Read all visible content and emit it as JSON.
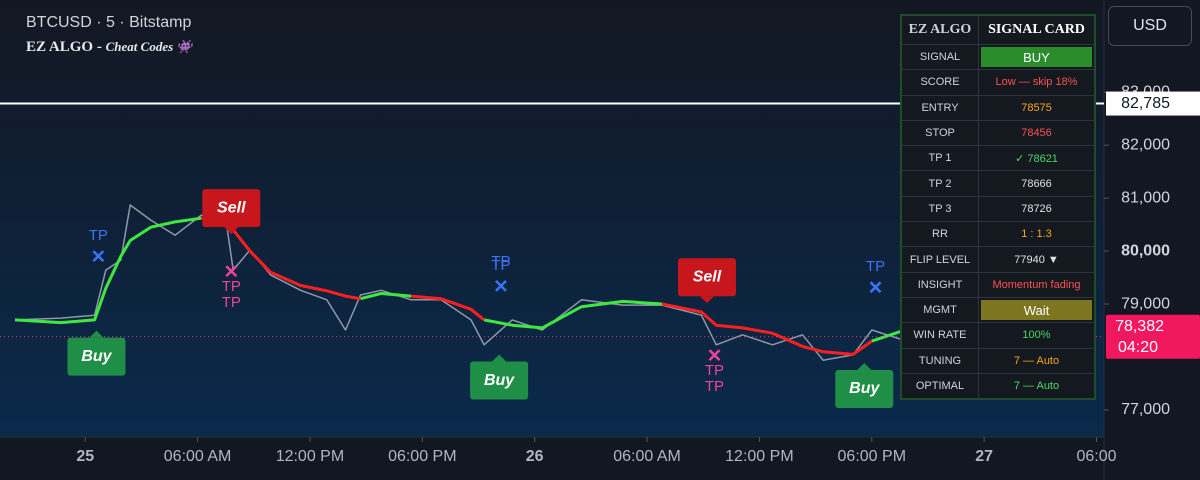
{
  "header": {
    "symbol": "BTCUSD · 5 · Bitstamp",
    "indicator": "EZ ALGO - ",
    "indicator_sub": "Cheat Codes 👾"
  },
  "currency": "USD",
  "chart_data": {
    "type": "line",
    "x": [
      -3.75,
      -1.3,
      0.5,
      1.1,
      1.9,
      2.4,
      3.5,
      4.8,
      6.2,
      7.5,
      7.9,
      8.8,
      9.9,
      11.5,
      12.9,
      13.9,
      14.7,
      15.8,
      17.4,
      19.0,
      20.6,
      21.3,
      22.8,
      24.4,
      26.5,
      28.7,
      30.8,
      32.9,
      33.7,
      35.1,
      36.7,
      38.3,
      39.4,
      41.0,
      42.0,
      43.7
    ],
    "series": [
      {
        "color": "#8f98a8",
        "values": [
          78700,
          78735,
          78790,
          79640,
          79830,
          80870,
          80585,
          80300,
          80680,
          80620,
          79640,
          80020,
          79550,
          79260,
          79080,
          78510,
          79170,
          79260,
          79080,
          79080,
          78700,
          78230,
          78700,
          78510,
          79080,
          78980,
          78980,
          78790,
          78230,
          78420,
          78230,
          78420,
          77940,
          78040,
          78510,
          78320
        ]
      },
      {
        "color": "#3ee83e",
        "values": [
          78700,
          78650,
          78700,
          79300,
          79900,
          80200,
          80450,
          80550,
          80620,
          null,
          null,
          null,
          null,
          null,
          null,
          null,
          79100,
          79200,
          79150,
          null,
          null,
          78700,
          78600,
          78550,
          78950,
          79050,
          79000,
          null,
          null,
          null,
          null,
          null,
          null,
          null,
          78300,
          78500
        ]
      },
      {
        "color": "#ff1f1f",
        "values": [
          null,
          null,
          null,
          null,
          null,
          null,
          null,
          null,
          80620,
          80600,
          80400,
          80000,
          79600,
          79350,
          79250,
          79150,
          79100,
          null,
          79150,
          79100,
          78900,
          78700,
          null,
          null,
          null,
          null,
          79000,
          78850,
          78600,
          78550,
          78450,
          78200,
          78100,
          78050,
          78300,
          null
        ]
      }
    ],
    "xlim": [
      -4.55,
      54.4
    ],
    "ylim": [
      76490,
      84740
    ],
    "xticks": [
      {
        "value": 0,
        "label": "25",
        "bold": true
      },
      {
        "value": 6,
        "label": "06:00 AM"
      },
      {
        "value": 12,
        "label": "12:00 PM"
      },
      {
        "value": 18,
        "label": "06:00 PM"
      },
      {
        "value": 24,
        "label": "26",
        "bold": true
      },
      {
        "value": 30,
        "label": "06:00 AM"
      },
      {
        "value": 36,
        "label": "12:00 PM"
      },
      {
        "value": 42,
        "label": "06:00 PM"
      },
      {
        "value": 48,
        "label": "27",
        "bold": true
      },
      {
        "value": 54,
        "label": "06:00"
      }
    ],
    "yticks": [
      {
        "value": 77000,
        "label": "77,000"
      },
      {
        "value": 79000,
        "label": "79,000"
      },
      {
        "value": 80000,
        "label": "80,000",
        "bold": true
      },
      {
        "value": 81000,
        "label": "81,000"
      },
      {
        "value": 82000,
        "label": "82,000"
      },
      {
        "value": 83000,
        "label": "83,000"
      }
    ],
    "price_line": {
      "value": 82785,
      "label": "82,785"
    },
    "last_price": {
      "value": 78382,
      "label": "78,382",
      "countdown": "04:20"
    },
    "signals": [
      {
        "label": "Buy",
        "x": 0.6
      },
      {
        "label": "Sell",
        "x": 7.8
      },
      {
        "label": "Buy",
        "x": 22.1
      },
      {
        "label": "Sell",
        "x": 33.2
      },
      {
        "label": "Buy",
        "x": 41.6
      }
    ],
    "tp_marks": [
      {
        "labels": [
          "TP"
        ],
        "x": 0.7,
        "color": "#3b74ff",
        "side": "above"
      },
      {
        "labels": [
          "TP",
          "TP"
        ],
        "x": 7.8,
        "color": "#f0449a",
        "side": "below"
      },
      {
        "labels": [
          "TP",
          "TP"
        ],
        "x": 22.2,
        "color": "#3b74ff",
        "side": "above"
      },
      {
        "labels": [
          "TP",
          "TP"
        ],
        "x": 33.6,
        "color": "#f0449a",
        "side": "below"
      },
      {
        "labels": [
          "TP"
        ],
        "x": 42.2,
        "color": "#3b74ff",
        "side": "above"
      }
    ]
  },
  "signal_card": {
    "header": [
      "EZ ALGO",
      "SIGNAL CARD"
    ],
    "rows": [
      {
        "label": "SIGNAL",
        "value": "BUY",
        "color": "#ffffff",
        "bg": "#2a8c2a"
      },
      {
        "label": "SCORE",
        "value": "Low — skip  18%",
        "color": "#ff5252"
      },
      {
        "label": "ENTRY",
        "value": 78575,
        "color": "#f5a623"
      },
      {
        "label": "STOP",
        "value": 78456,
        "color": "#ff5252"
      },
      {
        "label": "TP 1",
        "value": "✓  78621",
        "color": "#4cd964"
      },
      {
        "label": "TP 2",
        "value": 78666,
        "color": "#e0e0e0"
      },
      {
        "label": "TP 3",
        "value": 78726,
        "color": "#e0e0e0"
      },
      {
        "label": "RR",
        "value": "1 : 1.3",
        "color": "#f5a623"
      },
      {
        "label": "FLIP LEVEL",
        "value": "77940 ▼",
        "color": "#e0e0e0"
      },
      {
        "label": "INSIGHT",
        "value": "Momentum fading",
        "color": "#ff5252"
      },
      {
        "label": "MGMT",
        "value": "Wait",
        "color": "#ffffff",
        "bg": "#7d7520"
      },
      {
        "label": "WIN RATE",
        "value": "100%",
        "color": "#4cd964"
      },
      {
        "label": "TUNING",
        "value": "7 — Auto",
        "color": "#f5a623"
      },
      {
        "label": "OPTIMAL",
        "value": "7 — Auto",
        "color": "#4cd964"
      }
    ]
  }
}
